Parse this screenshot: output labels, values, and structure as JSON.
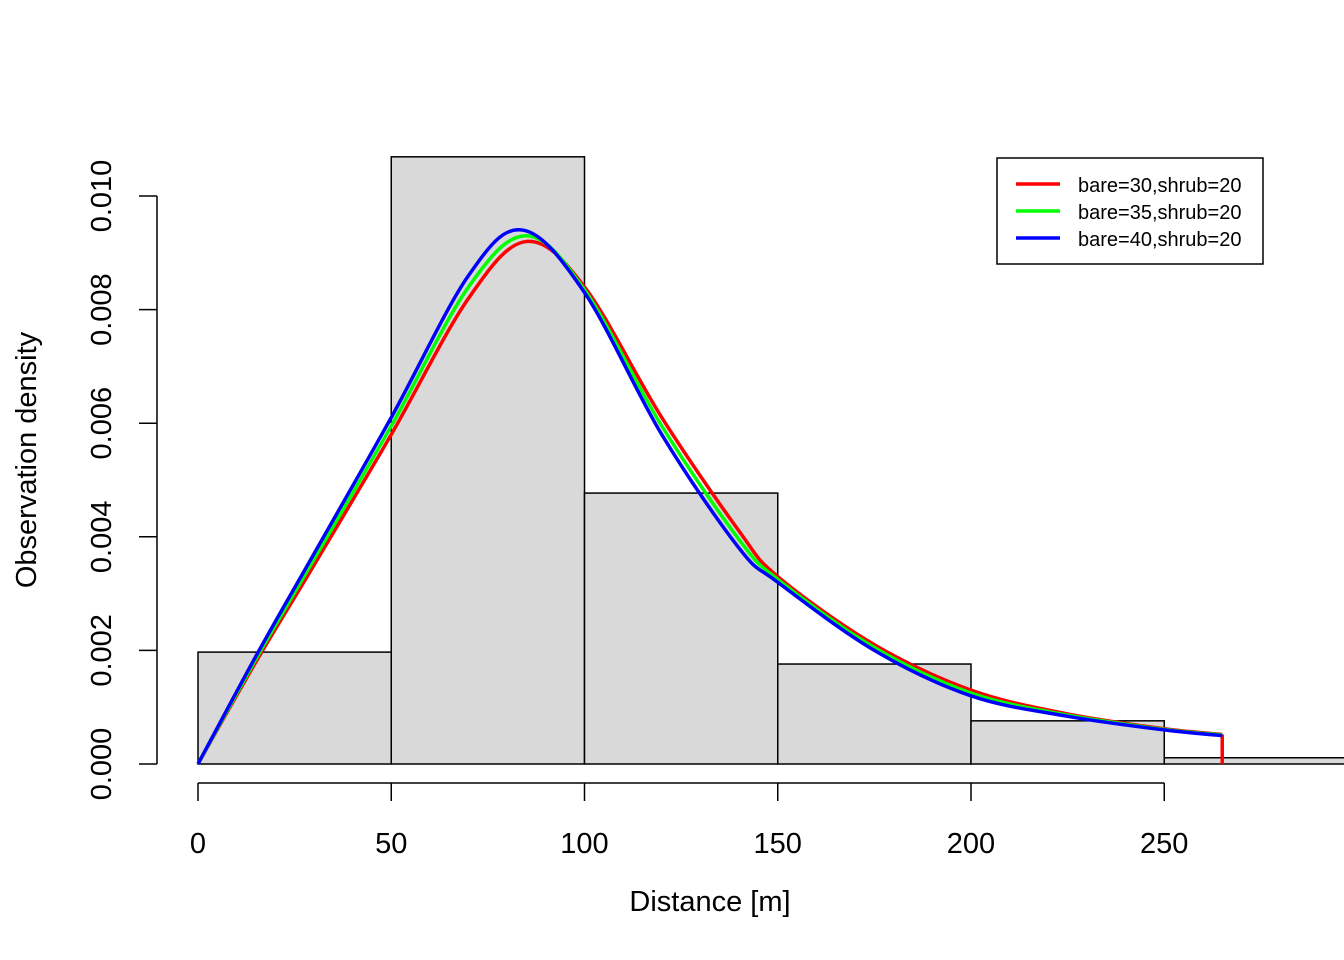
{
  "chart_data": {
    "type": "histogram+line",
    "title": "",
    "xlabel": "Distance [m]",
    "ylabel": "Observation density",
    "xlim": [
      0,
      300
    ],
    "ylim": [
      0,
      0.01
    ],
    "xticks": [
      0,
      50,
      100,
      150,
      200,
      250
    ],
    "xtick_labels": [
      "0",
      "50",
      "100",
      "150",
      "200",
      "250"
    ],
    "yticks": [
      0,
      0.002,
      0.004,
      0.006,
      0.008,
      0.01
    ],
    "ytick_labels": [
      "0.000",
      "0.002",
      "0.004",
      "0.006",
      "0.008",
      "0.010"
    ],
    "grid": false,
    "histogram": {
      "bins": [
        [
          0,
          50
        ],
        [
          50,
          100
        ],
        [
          100,
          150
        ],
        [
          150,
          200
        ],
        [
          200,
          250
        ],
        [
          250,
          300
        ]
      ],
      "values": [
        0.00197,
        0.01069,
        0.00477,
        0.00176,
        0.00076,
        0.00011
      ],
      "fill": "#d9d9d9"
    },
    "legend_position": "top-right",
    "series": [
      {
        "name": "bare=30,shrub=20",
        "color": "#ff0000",
        "x": [
          0,
          15,
          30,
          50,
          70,
          85,
          100,
          120,
          140,
          150,
          175,
          200,
          225,
          250,
          265
        ],
        "y": [
          0,
          0.0018,
          0.0035,
          0.0058,
          0.0082,
          0.0092,
          0.0084,
          0.0061,
          0.0041,
          0.0033,
          0.0021,
          0.0013,
          0.00088,
          0.00062,
          0.00052
        ]
      },
      {
        "name": "bare=35,shrub=20",
        "color": "#00ff00",
        "x": [
          0,
          15,
          30,
          50,
          70,
          85,
          100,
          120,
          140,
          150,
          175,
          200,
          225,
          250,
          265
        ],
        "y": [
          0,
          0.00185,
          0.0036,
          0.00595,
          0.0084,
          0.0093,
          0.00835,
          0.00595,
          0.00395,
          0.00325,
          0.00205,
          0.00125,
          0.00086,
          0.00061,
          0.00051
        ]
      },
      {
        "name": "bare=40,shrub=20",
        "color": "#0000ff",
        "x": [
          0,
          15,
          30,
          50,
          70,
          84,
          100,
          120,
          140,
          150,
          175,
          200,
          225,
          250,
          265
        ],
        "y": [
          0,
          0.0019,
          0.0037,
          0.0061,
          0.0086,
          0.0094,
          0.0083,
          0.0058,
          0.0038,
          0.0032,
          0.002,
          0.0012,
          0.00084,
          0.0006,
          0.0005
        ]
      }
    ]
  }
}
